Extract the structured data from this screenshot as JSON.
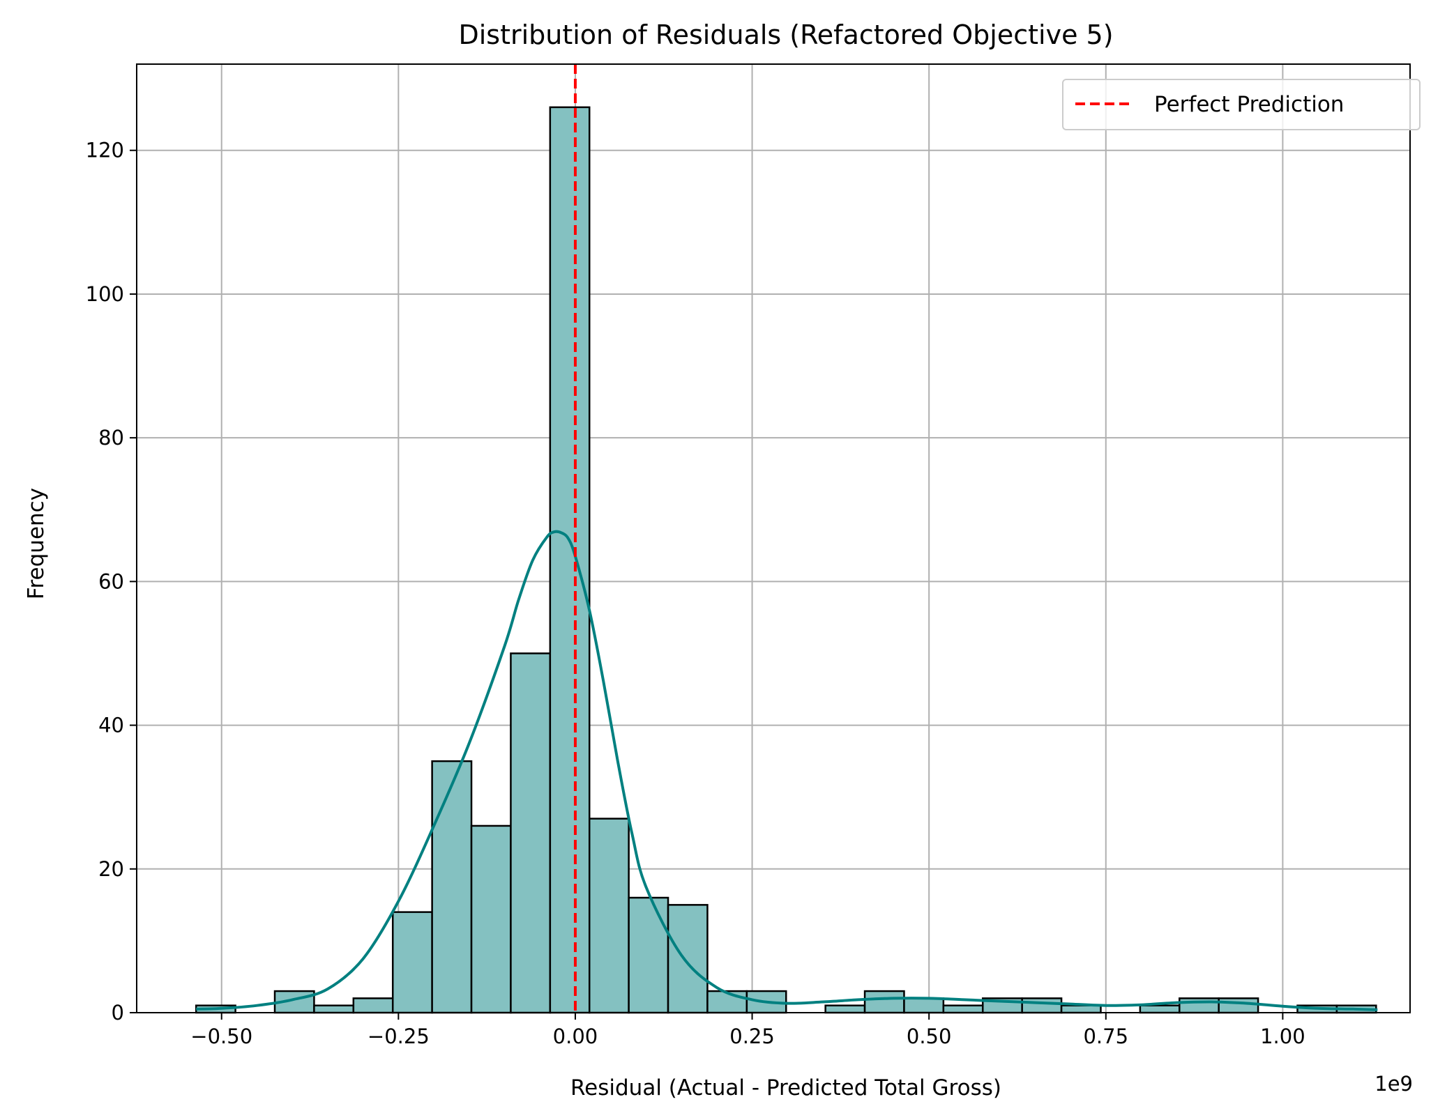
{
  "chart_data": {
    "type": "histogram",
    "title": "Distribution of Residuals (Refactored Objective 5)",
    "xlabel": "Residual (Actual - Predicted Total Gross)",
    "ylabel": "Frequency",
    "x_offset_label": "1e9",
    "x_unit_scale": 1000000000,
    "xlim": [
      -0.62,
      1.18
    ],
    "ylim": [
      0,
      132
    ],
    "xticks": [
      -0.5,
      -0.25,
      0.0,
      0.25,
      0.5,
      0.75,
      1.0
    ],
    "xtick_labels": [
      "−0.50",
      "−0.25",
      "0.00",
      "0.25",
      "0.50",
      "0.75",
      "1.00"
    ],
    "yticks": [
      0,
      20,
      40,
      60,
      80,
      100,
      120
    ],
    "ytick_labels": [
      "0",
      "20",
      "40",
      "60",
      "80",
      "100",
      "120"
    ],
    "grid": true,
    "bin_start": -0.536,
    "bin_width": 0.0556,
    "counts": [
      1,
      0,
      3,
      1,
      2,
      14,
      35,
      26,
      50,
      126,
      27,
      16,
      15,
      3,
      3,
      0,
      1,
      3,
      2,
      1,
      2,
      2,
      1,
      0,
      1,
      2,
      2,
      0,
      1,
      1
    ],
    "bar_color": "#84c1c1",
    "bar_edge_color": "#000000",
    "kde": {
      "color": "#008080",
      "x": [
        -0.536,
        -0.5,
        -0.45,
        -0.4,
        -0.35,
        -0.3,
        -0.25,
        -0.2,
        -0.15,
        -0.1,
        -0.08,
        -0.06,
        -0.04,
        -0.03,
        -0.02,
        -0.01,
        0.0,
        0.02,
        0.04,
        0.06,
        0.08,
        0.1,
        0.15,
        0.2,
        0.25,
        0.3,
        0.35,
        0.4,
        0.45,
        0.5,
        0.55,
        0.6,
        0.65,
        0.7,
        0.75,
        0.8,
        0.85,
        0.9,
        0.95,
        1.0,
        1.05,
        1.1,
        1.134
      ],
      "y": [
        0.5,
        0.6,
        1.0,
        1.8,
        3.3,
        7.5,
        15.5,
        26,
        37.5,
        51,
        57.5,
        63,
        66.2,
        66.9,
        66.8,
        66,
        63.5,
        56,
        46,
        35,
        25,
        17.5,
        8,
        3.5,
        1.8,
        1.3,
        1.5,
        1.8,
        2.0,
        2.0,
        1.8,
        1.6,
        1.4,
        1.2,
        1.0,
        1.1,
        1.4,
        1.5,
        1.3,
        0.9,
        0.6,
        0.5,
        0.4
      ]
    },
    "reference_line": {
      "x": 0.0,
      "color": "#ff0000",
      "style": "dashed",
      "label": "Perfect Prediction"
    },
    "legend": {
      "placement": "top-right",
      "entries": [
        "Perfect Prediction"
      ]
    }
  }
}
